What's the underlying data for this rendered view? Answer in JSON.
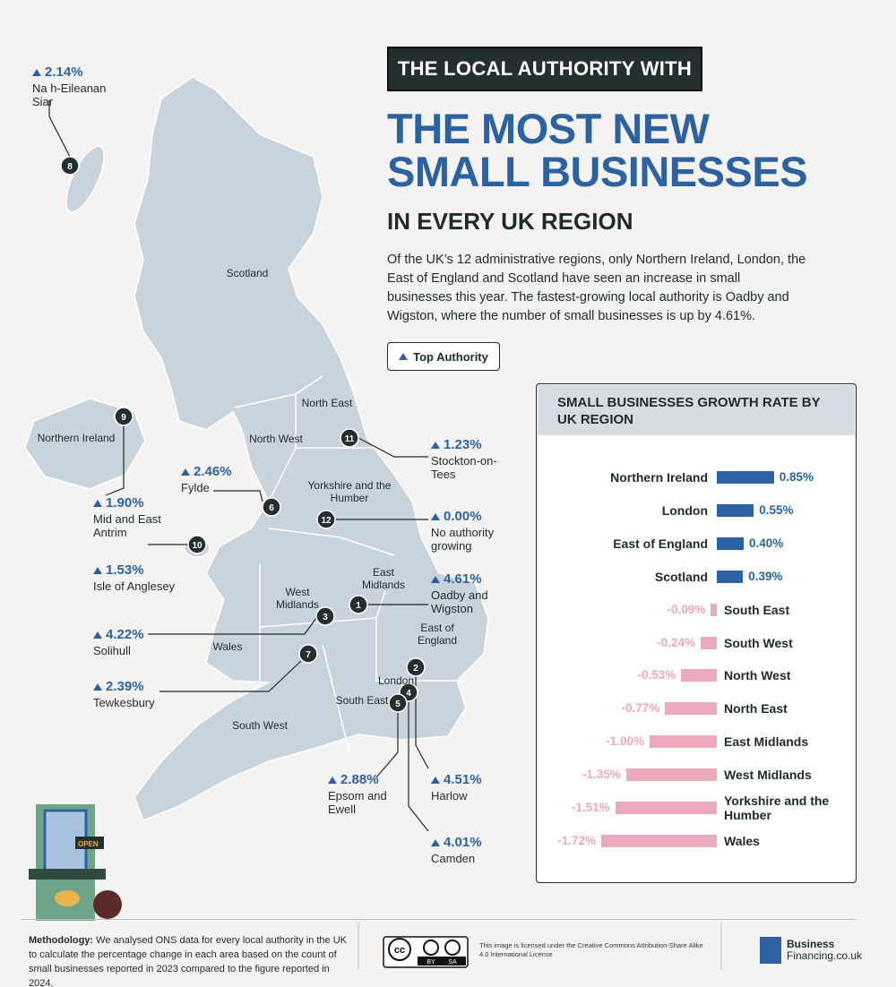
{
  "header": {
    "banner": "THE LOCAL AUTHORITY WITH",
    "title": "THE MOST NEW SMALL BUSINESSES",
    "subtitle": "IN EVERY UK REGION",
    "intro": "Of the UK’s 12 administrative regions, only Northern Ireland, London, the East of England and Scotland have seen an increase in small businesses this year. The fastest-growing local authority is Oadby and Wigston, where the number of small businesses is up by 4.61%.",
    "legend": "Top Authority"
  },
  "map": {
    "regions": [
      "Scotland",
      "Northern Ireland",
      "North West",
      "North East",
      "Yorkshire and the Humber",
      "East Midlands",
      "West Midlands",
      "Wales",
      "East of England",
      "London",
      "South East",
      "South West"
    ],
    "authorities": [
      {
        "number": "1",
        "growth": "4.61%",
        "name": "Oadby and Wigston"
      },
      {
        "number": "2",
        "growth": "4.51%",
        "name": "Harlow"
      },
      {
        "number": "3",
        "growth": "4.22%",
        "name": "Solihull"
      },
      {
        "number": "4",
        "growth": "4.01%",
        "name": "Camden"
      },
      {
        "number": "5",
        "growth": "2.88%",
        "name": "Epsom and Ewell"
      },
      {
        "number": "6",
        "growth": "2.46%",
        "name": "Fylde"
      },
      {
        "number": "7",
        "growth": "2.39%",
        "name": "Tewkesbury"
      },
      {
        "number": "8",
        "growth": "2.14%",
        "name": "Na h-Eileanan Siar"
      },
      {
        "number": "9",
        "growth": "1.90%",
        "name": "Mid and East Antrim"
      },
      {
        "number": "10",
        "growth": "1.53%",
        "name": "Isle of Anglesey"
      },
      {
        "number": "11",
        "growth": "1.23%",
        "name": "Stockton-on-Tees"
      },
      {
        "number": "12",
        "growth": "0.00%",
        "name": "No authority growing"
      }
    ]
  },
  "chart_data": {
    "type": "bar",
    "orientation": "horizontal",
    "title": "SMALL BUSINESSES GROWTH RATE BY UK REGION",
    "categories": [
      "Northern Ireland",
      "London",
      "East of England",
      "Scotland",
      "South East",
      "South West",
      "North West",
      "North East",
      "East Midlands",
      "West Midlands",
      "Yorkshire and the Humber",
      "Wales"
    ],
    "values": [
      0.85,
      0.55,
      0.4,
      0.39,
      -0.09,
      -0.24,
      -0.53,
      -0.77,
      -1.0,
      -1.35,
      -1.51,
      -1.72
    ],
    "value_labels": [
      "0.85%",
      "0.55%",
      "0.40%",
      "0.39%",
      "-0.09%",
      "-0.24%",
      "-0.53%",
      "-0.77%",
      "-1.00%",
      "-1.35%",
      "-1.51%",
      "-1.72%"
    ],
    "color": "#2d62a0",
    "negative_color": "#eba9bc"
  },
  "illustration": {
    "sign": "OPEN"
  },
  "footer": {
    "methodology_label": "Methodology:",
    "methodology": "We analysed ONS data for every local authority in the UK to calculate the percentage change in each area based on the count of small businesses reported in 2023 compared to the figure reported in 2024.",
    "cc_badge": {
      "cc": "cc",
      "by": "BY",
      "sa": "SA"
    },
    "license": "This image is licensed under the Creative Commons Attribution-Share Alike 4.0 International License",
    "logo": [
      "Business",
      "Financing.co.uk"
    ]
  }
}
